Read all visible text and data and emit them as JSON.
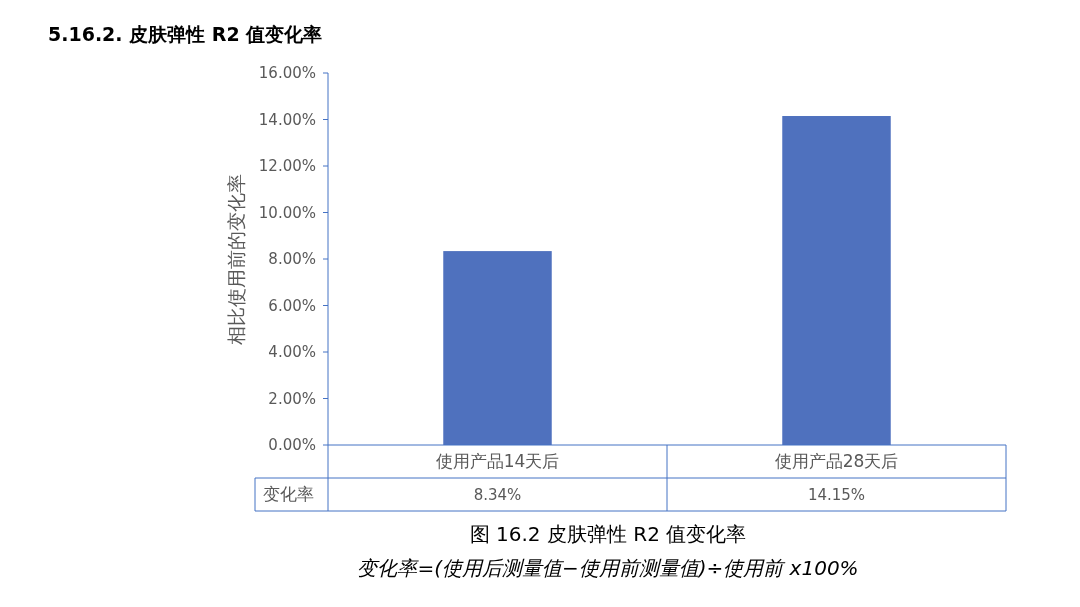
{
  "chart_data": {
    "type": "bar",
    "title": "5.16.2.  皮肤弹性 R2 值变化率",
    "ylabel": "相比使用前的变化率",
    "categories": [
      "使用产品14天后",
      "使用产品28天后"
    ],
    "series": [
      {
        "name": "变化率",
        "color": "#4f71be",
        "values": [
          8.34,
          14.15
        ],
        "value_labels": [
          "8.34%",
          "14.15%"
        ]
      }
    ],
    "ylim": [
      0,
      16
    ],
    "yticks": [
      {
        "value": 0,
        "label": "0.00%"
      },
      {
        "value": 2,
        "label": "2.00%"
      },
      {
        "value": 4,
        "label": "4.00%"
      },
      {
        "value": 6,
        "label": "6.00%"
      },
      {
        "value": 8,
        "label": "8.00%"
      },
      {
        "value": 10,
        "label": "10.00%"
      },
      {
        "value": 12,
        "label": "12.00%"
      },
      {
        "value": 14,
        "label": "14.00%"
      },
      {
        "value": 16,
        "label": "16.00%"
      }
    ],
    "grid": false,
    "legend": "bottom",
    "annotations": [
      "图 16.2 皮肤弹性 R2 值变化率",
      "变化率=(使用后测量值−使用前测量值)÷使用前 x100%"
    ]
  }
}
